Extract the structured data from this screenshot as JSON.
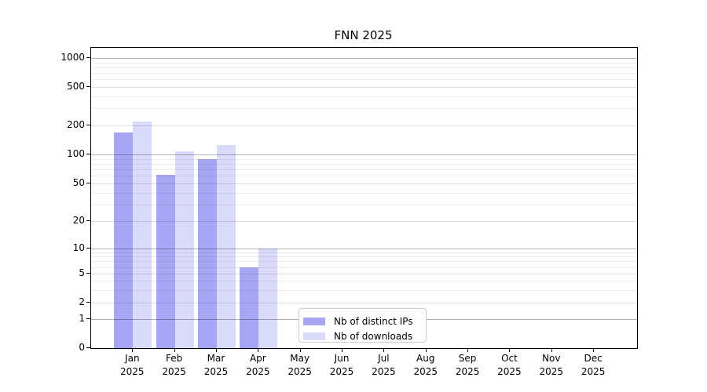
{
  "chart_data": {
    "type": "bar",
    "title": "FNN 2025",
    "categories": [
      {
        "month": "Jan",
        "year": "2025"
      },
      {
        "month": "Feb",
        "year": "2025"
      },
      {
        "month": "Mar",
        "year": "2025"
      },
      {
        "month": "Apr",
        "year": "2025"
      },
      {
        "month": "May",
        "year": "2025"
      },
      {
        "month": "Jun",
        "year": "2025"
      },
      {
        "month": "Jul",
        "year": "2025"
      },
      {
        "month": "Aug",
        "year": "2025"
      },
      {
        "month": "Sep",
        "year": "2025"
      },
      {
        "month": "Oct",
        "year": "2025"
      },
      {
        "month": "Nov",
        "year": "2025"
      },
      {
        "month": "Dec",
        "year": "2025"
      }
    ],
    "series": [
      {
        "name": "Nb of distinct IPs",
        "color": "#a6a6f4",
        "values": [
          170,
          62,
          90,
          6,
          0,
          0,
          0,
          0,
          0,
          0,
          0,
          0
        ]
      },
      {
        "name": "Nb of downloads",
        "color": "#dadafa",
        "values": [
          220,
          107,
          126,
          10,
          0,
          0,
          0,
          0,
          0,
          0,
          0,
          0
        ]
      }
    ],
    "y_axis": {
      "scale": "symlog",
      "ticks": [
        0,
        1,
        2,
        5,
        10,
        20,
        50,
        100,
        200,
        500,
        1000
      ],
      "minor_gridlines": [
        3,
        4,
        6,
        7,
        8,
        9,
        30,
        40,
        60,
        70,
        80,
        90,
        300,
        400,
        600,
        700,
        800,
        900
      ],
      "ylim": [
        0,
        1300
      ],
      "grid": true
    },
    "legend": {
      "position": "bottom-center-inside"
    }
  },
  "colors": {
    "bar_distinct_ips": "#a6a6f4",
    "bar_downloads": "#dadafa",
    "grid_major": "rgba(0,0,0,0.30)",
    "grid_minor": "rgba(0,0,0,0.07)",
    "spine": "#000000",
    "legend_border": "#cccccc"
  }
}
